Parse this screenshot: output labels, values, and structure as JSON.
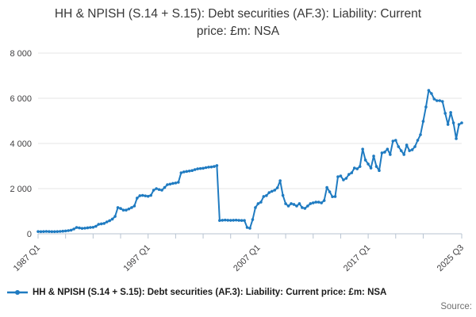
{
  "title": "HH & NPISH (S.14 + S.15): Debt securities (AF.3): Liability: Current price: £m: NSA",
  "legend": {
    "label": "HH & NPISH (S.14 + S.15): Debt securities (AF.3): Liability: Current price: £m: NSA"
  },
  "footer": {
    "source_label": "Source:"
  },
  "colors": {
    "series": "#1f7bc1",
    "grid": "#e4e4e4",
    "axis": "#b7c3d1",
    "text": "#414042",
    "muted": "#6f6f6f"
  },
  "chart_data": {
    "type": "line",
    "title": "HH & NPISH (S.14 + S.15): Debt securities (AF.3): Liability: Current price: £m: NSA",
    "xlabel": "",
    "ylabel": "",
    "x_start": "1987 Q1",
    "x_end": "2025 Q3",
    "frequency": "quarterly",
    "grid": true,
    "legend_position": "bottom",
    "ylim": [
      0,
      8000
    ],
    "y_ticks": [
      0,
      2000,
      4000,
      6000,
      8000
    ],
    "y_tick_labels": [
      "0",
      "2 000",
      "4 000",
      "6 000",
      "8 000"
    ],
    "x_ticks": [
      {
        "index": 0,
        "label": "1987 Q1"
      },
      {
        "index": 10,
        "label": ""
      },
      {
        "index": 20,
        "label": ""
      },
      {
        "index": 30,
        "label": ""
      },
      {
        "index": 40,
        "label": "1997 Q1"
      },
      {
        "index": 50,
        "label": ""
      },
      {
        "index": 60,
        "label": ""
      },
      {
        "index": 70,
        "label": ""
      },
      {
        "index": 80,
        "label": "2007 Q1"
      },
      {
        "index": 90,
        "label": ""
      },
      {
        "index": 100,
        "label": ""
      },
      {
        "index": 110,
        "label": ""
      },
      {
        "index": 120,
        "label": "2017 Q1"
      },
      {
        "index": 130,
        "label": ""
      },
      {
        "index": 140,
        "label": ""
      },
      {
        "index": 154,
        "label": "2025 Q3"
      }
    ],
    "series": [
      {
        "name": "HH & NPISH (S.14 + S.15): Debt securities (AF.3): Liability: Current price: £m: NSA",
        "color": "#1f7bc1",
        "values": [
          100,
          95,
          100,
          105,
          100,
          95,
          95,
          100,
          105,
          115,
          125,
          140,
          160,
          210,
          280,
          260,
          240,
          250,
          265,
          280,
          290,
          330,
          420,
          440,
          460,
          525,
          580,
          650,
          770,
          1160,
          1120,
          1050,
          1050,
          1100,
          1160,
          1230,
          1580,
          1685,
          1700,
          1680,
          1660,
          1700,
          1930,
          2000,
          1960,
          1930,
          2050,
          2175,
          2200,
          2230,
          2250,
          2280,
          2700,
          2740,
          2760,
          2780,
          2800,
          2840,
          2875,
          2890,
          2900,
          2930,
          2950,
          2960,
          2980,
          3020,
          590,
          600,
          610,
          600,
          595,
          600,
          605,
          595,
          590,
          590,
          280,
          245,
          630,
          1160,
          1335,
          1400,
          1650,
          1690,
          1825,
          1880,
          1930,
          2035,
          2350,
          1700,
          1330,
          1230,
          1335,
          1300,
          1230,
          1335,
          1160,
          1125,
          1230,
          1335,
          1370,
          1400,
          1400,
          1370,
          1470,
          2050,
          1860,
          1640,
          1650,
          2525,
          2560,
          2385,
          2455,
          2630,
          2700,
          2910,
          2875,
          2980,
          3750,
          3265,
          3090,
          2910,
          3440,
          2980,
          2800,
          3580,
          3615,
          3750,
          3510,
          4105,
          4140,
          3860,
          3680,
          3510,
          3930,
          3680,
          3720,
          3860,
          4140,
          4385,
          4980,
          5615,
          6350,
          6210,
          5965,
          5895,
          5895,
          5860,
          5335,
          4840,
          5370,
          4910,
          4210,
          4840,
          4910
        ]
      }
    ]
  }
}
